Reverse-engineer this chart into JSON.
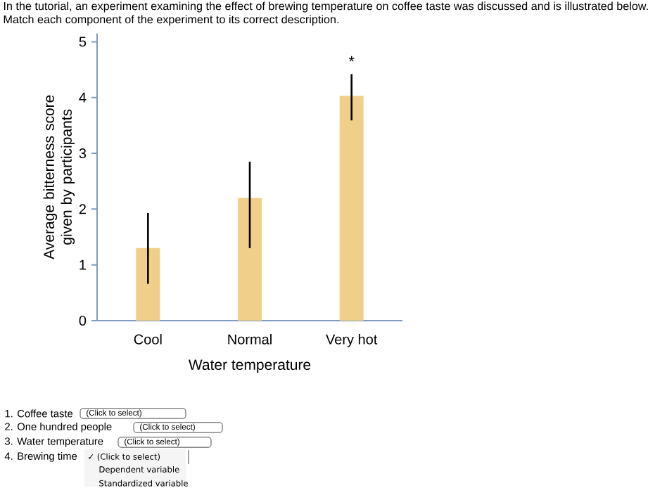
{
  "chart_data": {
    "type": "bar",
    "title": "In the tutorial, an experiment examining the effect of brewing temperature on coffee taste was discussed and is illustrated below.",
    "subtitle": "Match each component of the experiment to its correct description.",
    "xlabel": "Water temperature",
    "ylabel": "Average bitterness score given by participants",
    "categories": [
      "Cool",
      "Normal",
      "Very hot"
    ],
    "values": [
      1.3,
      2.2,
      4.03
    ],
    "errors": [
      [
        0.66,
        1.93
      ],
      [
        1.3,
        2.85
      ],
      [
        3.59,
        4.42
      ]
    ],
    "color": "#f0cf8a",
    "ylim": [
      0,
      5.15
    ],
    "yticks": [
      0,
      1,
      2,
      3,
      4,
      5
    ],
    "grid": false,
    "annotations": [
      "*",
      "1. Coffee taste",
      "2. One hundred people",
      "3. Water temperature",
      "4. Brewing time",
      "(Click to select)",
      "(Click to select)",
      "(Click to select)",
      "✓ (Click to select)",
      "Dependent variable",
      "Standardized variable"
    ]
  }
}
